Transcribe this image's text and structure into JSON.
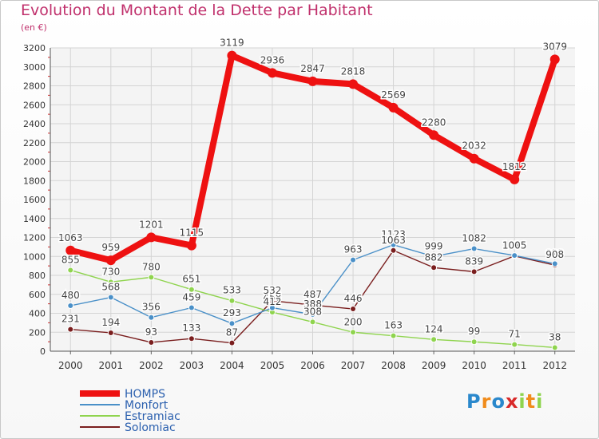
{
  "chart_data": {
    "type": "line",
    "title": "Evolution du Montant de la Dette par Habitant",
    "subtitle": "(en €)",
    "x": [
      "2000",
      "2001",
      "2002",
      "2003",
      "2004",
      "2005",
      "2006",
      "2007",
      "2008",
      "2009",
      "2010",
      "2011",
      "2012"
    ],
    "ylim": [
      0,
      3200
    ],
    "yticks": [
      0,
      200,
      400,
      600,
      800,
      1000,
      1200,
      1400,
      1600,
      1800,
      2000,
      2200,
      2400,
      2600,
      2800,
      3000,
      3200
    ],
    "grid": true,
    "legend_position": "bottom-left",
    "series": [
      {
        "name": "HOMPS",
        "color": "#ee1111",
        "values": [
          1063,
          959,
          1201,
          1115,
          3119,
          2936,
          2847,
          2818,
          2569,
          2280,
          2032,
          1812,
          3079
        ]
      },
      {
        "name": "Monfort",
        "color": "#4a90c8",
        "values": [
          480,
          568,
          356,
          459,
          293,
          458,
          388,
          963,
          1123,
          999,
          1082,
          1010,
          923
        ]
      },
      {
        "name": "Estramiac",
        "color": "#8fd44e",
        "values": [
          855,
          730,
          780,
          651,
          533,
          412,
          308,
          200,
          163,
          124,
          99,
          71,
          38
        ]
      },
      {
        "name": "Solomiac",
        "color": "#7a1e1e",
        "values": [
          231,
          194,
          93,
          133,
          87,
          532,
          487,
          446,
          1063,
          882,
          839,
          1005,
          908
        ]
      }
    ]
  },
  "logo": {
    "letters": [
      "P",
      "r",
      "o",
      "x",
      "i",
      "t",
      "i"
    ],
    "colors": [
      "#2a88cc",
      "#f08c1c",
      "#2a88cc",
      "#d82a2a",
      "#8fd44e",
      "#f08c1c",
      "#8fd44e"
    ]
  }
}
